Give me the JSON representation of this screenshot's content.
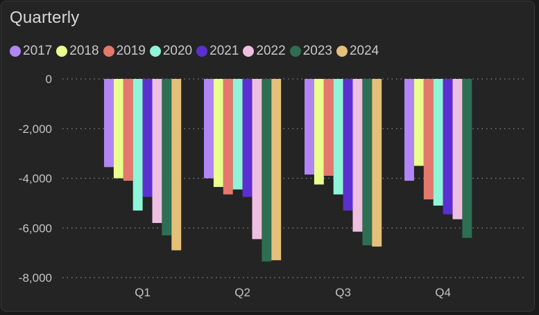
{
  "card": {
    "title": "Quarterly"
  },
  "colors": {
    "background": "#242424",
    "grid": "#8a8a8a"
  },
  "chart_data": {
    "type": "bar",
    "title": "Quarterly",
    "xlabel": "",
    "ylabel": "",
    "categories": [
      "Q1",
      "Q2",
      "Q3",
      "Q4"
    ],
    "ylim": [
      -8000,
      0
    ],
    "yticks": [
      0,
      -2000,
      -4000,
      -6000,
      -8000
    ],
    "ytick_labels": [
      "0",
      "-2,000",
      "-4,000",
      "-6,000",
      "-8,000"
    ],
    "grid": true,
    "legend_position": "top-left",
    "series": [
      {
        "name": "2017",
        "color": "#b285f5",
        "values": [
          -3550,
          -4000,
          -3850,
          -4100
        ]
      },
      {
        "name": "2018",
        "color": "#eaff8f",
        "values": [
          -4000,
          -4350,
          -4250,
          -3500
        ]
      },
      {
        "name": "2019",
        "color": "#e5786d",
        "values": [
          -4100,
          -4650,
          -3900,
          -4850
        ]
      },
      {
        "name": "2020",
        "color": "#8ef5d8",
        "values": [
          -5300,
          -4450,
          -4650,
          -5100
        ]
      },
      {
        "name": "2021",
        "color": "#5c2fd1",
        "values": [
          -4750,
          -4750,
          -5300,
          -5450
        ]
      },
      {
        "name": "2022",
        "color": "#efbfe2",
        "values": [
          -5800,
          -6450,
          -6150,
          -5650
        ]
      },
      {
        "name": "2023",
        "color": "#2e6e52",
        "values": [
          -6300,
          -7350,
          -6700,
          -6400
        ]
      },
      {
        "name": "2024",
        "color": "#e5c07a",
        "values": [
          -6900,
          -7300,
          -6750,
          null
        ]
      }
    ]
  }
}
